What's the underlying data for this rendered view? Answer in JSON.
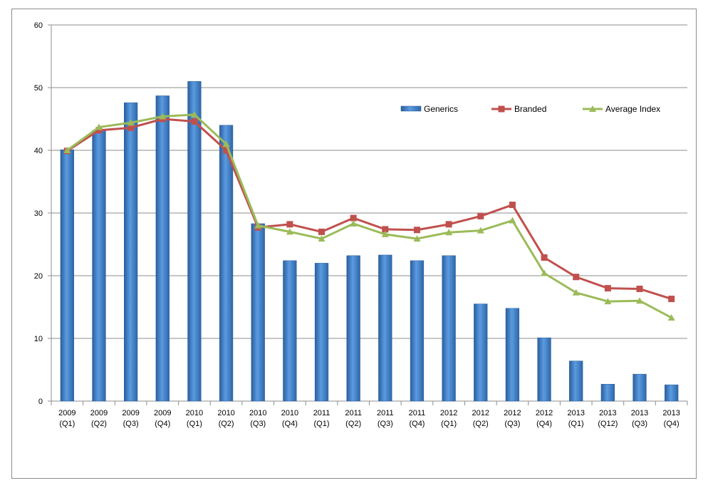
{
  "chart_data": {
    "type": "bar",
    "categories": [
      [
        "2009",
        "(Q1)"
      ],
      [
        "2009",
        "(Q2)"
      ],
      [
        "2009",
        "(Q3)"
      ],
      [
        "2009",
        "(Q4)"
      ],
      [
        "2010",
        "(Q1)"
      ],
      [
        "2010",
        "(Q2)"
      ],
      [
        "2010",
        "(Q3)"
      ],
      [
        "2010",
        "(Q4)"
      ],
      [
        "2011",
        "(Q1)"
      ],
      [
        "2011",
        "(Q2)"
      ],
      [
        "2011",
        "(Q3)"
      ],
      [
        "2011",
        "(Q4)"
      ],
      [
        "2012",
        "(Q1)"
      ],
      [
        "2012",
        "(Q2)"
      ],
      [
        "2012",
        "(Q3)"
      ],
      [
        "2012",
        "(Q4)"
      ],
      [
        "2013",
        "(Q1)"
      ],
      [
        "2013",
        "(Q12)"
      ],
      [
        "2013",
        "(Q3)"
      ],
      [
        "2013",
        "(Q4)"
      ]
    ],
    "ylim": [
      0,
      60
    ],
    "yticks": [
      "0",
      "10",
      "20",
      "30",
      "40",
      "50",
      "60"
    ],
    "grid": true,
    "legend_position": "top-right",
    "series": [
      {
        "name": "Generics",
        "kind": "bar",
        "color": "#3a7ac4",
        "values": [
          40.1,
          43.2,
          47.6,
          48.7,
          51.0,
          44.0,
          28.3,
          22.4,
          22.0,
          23.2,
          23.3,
          22.4,
          23.2,
          15.5,
          14.8,
          10.1,
          6.4,
          2.7,
          4.3,
          2.6
        ]
      },
      {
        "name": "Branded",
        "kind": "line",
        "color": "#c0504d",
        "values": [
          39.9,
          43.2,
          43.6,
          45.0,
          44.6,
          40.0,
          27.7,
          28.2,
          27.0,
          29.2,
          27.4,
          27.3,
          28.2,
          29.5,
          31.3,
          22.9,
          19.8,
          18.0,
          17.9,
          16.3
        ]
      },
      {
        "name": "Average Index",
        "kind": "line",
        "color": "#9bbb59",
        "values": [
          40.0,
          43.7,
          44.4,
          45.4,
          45.7,
          41.0,
          28.0,
          27.0,
          25.9,
          28.3,
          26.6,
          25.9,
          26.9,
          27.2,
          28.8,
          20.4,
          17.3,
          15.9,
          16.0,
          13.3
        ]
      }
    ]
  }
}
